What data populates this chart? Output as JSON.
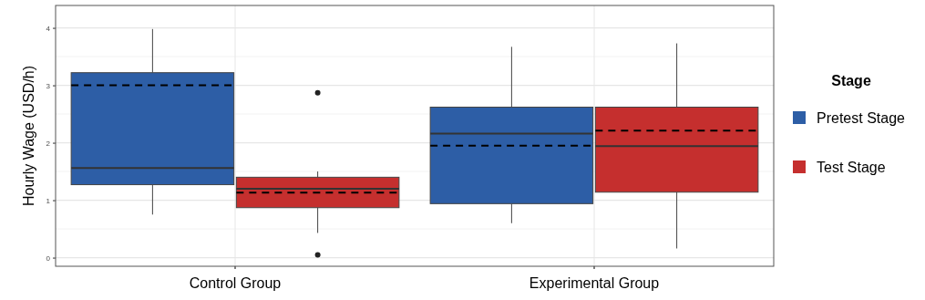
{
  "chart_data": {
    "type": "box",
    "ylabel": "Hourly Wage (USD/h)",
    "legend_title": "Stage",
    "categories": [
      "Control Group",
      "Experimental Group"
    ],
    "ylim": [
      -0.15,
      4.39
    ],
    "yticks": [
      0,
      {
        "value": 0.5,
        "label": null
      },
      1,
      {
        "value": 1.5,
        "label": null
      },
      2,
      {
        "value": 2.5,
        "label": null
      },
      3,
      {
        "value": 3.5,
        "label": null
      },
      4
    ],
    "grid": true,
    "legend": "right",
    "series": [
      {
        "name": "Pretest Stage",
        "color": "#2d5ea6",
        "boxes": [
          {
            "low": 0.75,
            "q1": 1.27,
            "median": 1.56,
            "q3": 3.22,
            "high": 3.98,
            "mean": 3.0
          },
          {
            "low": 0.6,
            "q1": 0.94,
            "median": 2.16,
            "q3": 2.62,
            "high": 3.67,
            "mean": 1.95
          }
        ]
      },
      {
        "name": "Test Stage",
        "color": "#c52f2e",
        "boxes": [
          {
            "low": 0.43,
            "q1": 0.87,
            "median": 1.2,
            "q3": 1.4,
            "high": 1.5,
            "mean": 1.13,
            "outliers": [
              2.87,
              0.05
            ]
          },
          {
            "low": 0.16,
            "q1": 1.14,
            "median": 1.94,
            "q3": 2.62,
            "high": 3.73,
            "mean": 2.21
          }
        ]
      }
    ]
  }
}
